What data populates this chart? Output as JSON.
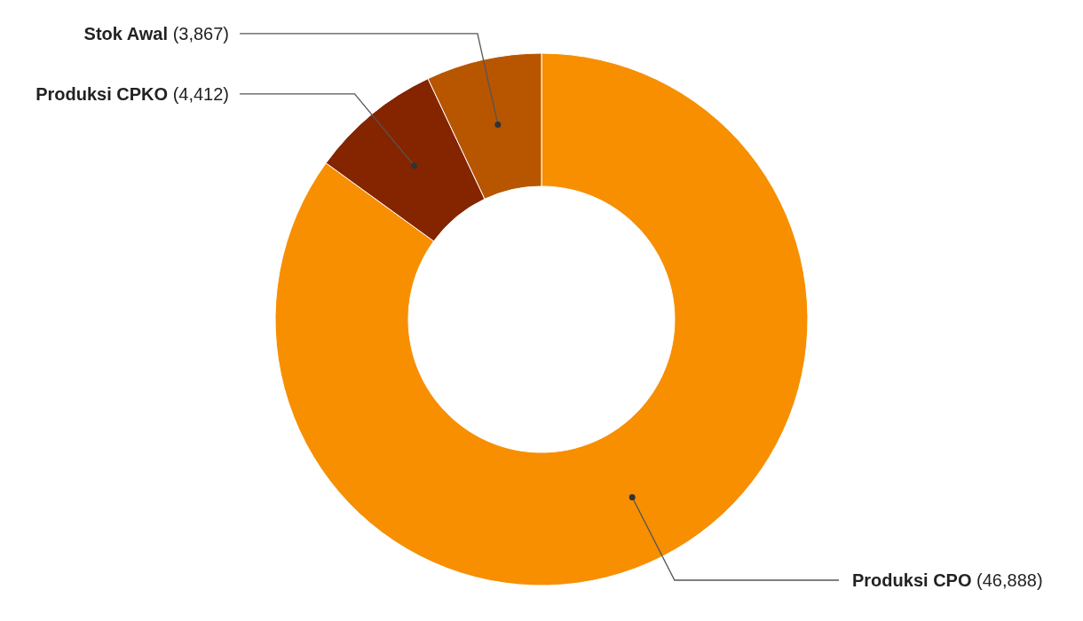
{
  "chart_data": {
    "type": "donut",
    "categories": [
      "Produksi CPO",
      "Produksi CPKO",
      "Stok Awal"
    ],
    "values": [
      46888,
      4412,
      3867
    ],
    "colors": [
      "#f78f00",
      "#842500",
      "#b85600"
    ],
    "value_labels": [
      "(46,888)",
      "(4,412)",
      "(3,867)"
    ]
  }
}
